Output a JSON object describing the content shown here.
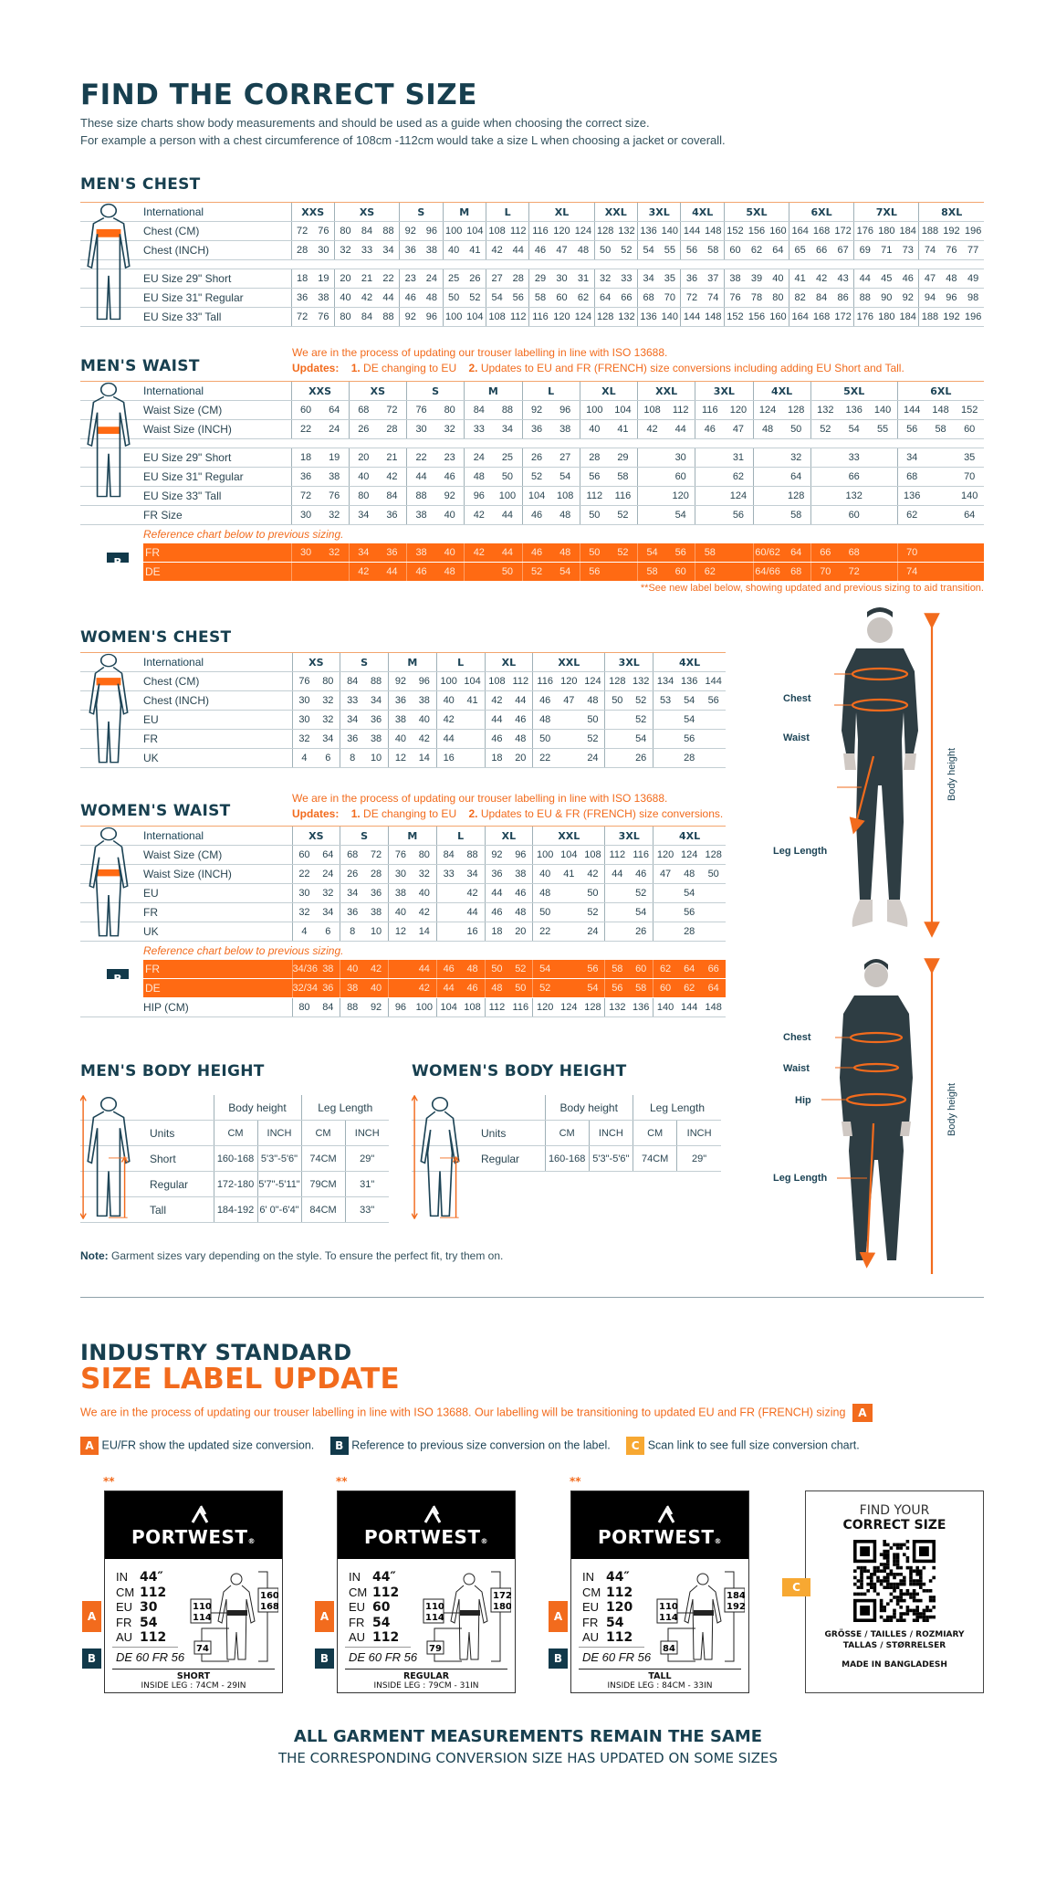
{
  "header": {
    "title": "FIND THE CORRECT SIZE",
    "subtitle_1": "These size charts show body measurements and should be used as a guide when choosing the correct size.",
    "subtitle_2": "For example a person with a chest circumference of 108cm -112cm would take a size L when choosing a jacket or coverall."
  },
  "colors": {
    "navy": "#173f4f",
    "orange": "#ff6a13",
    "badge_b": "#11394a",
    "badge_c": "#f7a832"
  },
  "mens_chest": {
    "title": "MEN'S CHEST",
    "header_label": "International",
    "groups": [
      [
        "XXS",
        2
      ],
      [
        "XS",
        3
      ],
      [
        "S",
        2
      ],
      [
        "M",
        2
      ],
      [
        "L",
        2
      ],
      [
        "XL",
        3
      ],
      [
        "XXL",
        2
      ],
      [
        "3XL",
        2
      ],
      [
        "4XL",
        2
      ],
      [
        "5XL",
        3
      ],
      [
        "6XL",
        3
      ],
      [
        "7XL",
        3
      ],
      [
        "8XL",
        3
      ]
    ],
    "rows": [
      {
        "label": "Chest (CM)",
        "cells": [
          "72",
          "76",
          "80",
          "84",
          "88",
          "92",
          "96",
          "100",
          "104",
          "108",
          "112",
          "116",
          "120",
          "124",
          "128",
          "132",
          "136",
          "140",
          "144",
          "148",
          "152",
          "156",
          "160",
          "164",
          "168",
          "172",
          "176",
          "180",
          "184",
          "188",
          "192",
          "196"
        ]
      },
      {
        "label": "Chest (INCH)",
        "cells": [
          "28",
          "30",
          "32",
          "33",
          "34",
          "36",
          "38",
          "40",
          "41",
          "42",
          "44",
          "46",
          "47",
          "48",
          "50",
          "52",
          "54",
          "55",
          "56",
          "58",
          "60",
          "62",
          "64",
          "65",
          "66",
          "67",
          "69",
          "71",
          "73",
          "74",
          "76",
          "77"
        ]
      },
      {
        "type": "gap"
      },
      {
        "label": "EU Size 29\" Short",
        "cells": [
          "18",
          "19",
          "20",
          "21",
          "22",
          "23",
          "24",
          "25",
          "26",
          "27",
          "28",
          "29",
          "30",
          "31",
          "32",
          "33",
          "34",
          "35",
          "36",
          "37",
          "38",
          "39",
          "40",
          "41",
          "42",
          "43",
          "44",
          "45",
          "46",
          "47",
          "48",
          "49"
        ]
      },
      {
        "label": "EU Size 31\" Regular",
        "cells": [
          "36",
          "38",
          "40",
          "42",
          "44",
          "46",
          "48",
          "50",
          "52",
          "54",
          "56",
          "58",
          "60",
          "62",
          "64",
          "66",
          "68",
          "70",
          "72",
          "74",
          "76",
          "78",
          "80",
          "82",
          "84",
          "86",
          "88",
          "90",
          "92",
          "94",
          "96",
          "98"
        ]
      },
      {
        "label": "EU Size 33\" Tall",
        "cells": [
          "72",
          "76",
          "80",
          "84",
          "88",
          "92",
          "96",
          "100",
          "104",
          "108",
          "112",
          "116",
          "120",
          "124",
          "128",
          "132",
          "136",
          "140",
          "144",
          "148",
          "152",
          "156",
          "160",
          "164",
          "168",
          "172",
          "176",
          "180",
          "184",
          "188",
          "192",
          "196"
        ]
      }
    ]
  },
  "mens_waist": {
    "title": "MEN'S WAIST",
    "notice": "We are in the process of updating our trouser labelling in line with ISO 13688.",
    "updates_label": "Updates:",
    "update_1_num": "1.",
    "update_1": "DE changing to EU",
    "update_2_num": "2.",
    "update_2": "Updates to EU and FR (FRENCH) size conversions including adding EU Short and Tall.",
    "footnote": "**See new label below, showing updated and previous sizing to aid transition.",
    "header_label": "International",
    "groups": [
      [
        "XXS",
        2
      ],
      [
        "XS",
        2
      ],
      [
        "S",
        2
      ],
      [
        "M",
        2
      ],
      [
        "L",
        2
      ],
      [
        "XL",
        2
      ],
      [
        "XXL",
        2
      ],
      [
        "3XL",
        2
      ],
      [
        "4XL",
        2
      ],
      [
        "5XL",
        3
      ],
      [
        "6XL",
        3
      ]
    ],
    "rows": [
      {
        "label": "Waist Size (CM)",
        "cells": [
          "60",
          "64",
          "68",
          "72",
          "76",
          "80",
          "84",
          "88",
          "92",
          "96",
          "100",
          "104",
          "108",
          "112",
          "116",
          "120",
          "124",
          "128",
          "132",
          "136",
          "140",
          "144",
          "148",
          "152"
        ]
      },
      {
        "label": "Waist Size (INCH)",
        "cells": [
          "22",
          "24",
          "26",
          "28",
          "30",
          "32",
          "33",
          "34",
          "36",
          "38",
          "40",
          "41",
          "42",
          "44",
          "46",
          "47",
          "48",
          "50",
          "52",
          "54",
          "55",
          "56",
          "58",
          "60"
        ]
      },
      {
        "type": "gap"
      },
      {
        "label": "EU Size 29\" Short",
        "cells": [
          "18",
          "19",
          "20",
          "21",
          "22",
          "23",
          "24",
          "25",
          "26",
          "27",
          "28",
          "29",
          "",
          "30",
          "",
          "31",
          "",
          "32",
          "",
          "33",
          "",
          "34",
          "",
          "35"
        ]
      },
      {
        "label": "EU Size 31\" Regular",
        "cells": [
          "36",
          "38",
          "40",
          "42",
          "44",
          "46",
          "48",
          "50",
          "52",
          "54",
          "56",
          "58",
          "",
          "60",
          "",
          "62",
          "",
          "64",
          "",
          "66",
          "",
          "68",
          "",
          "70"
        ]
      },
      {
        "label": "EU Size 33\" Tall",
        "cells": [
          "72",
          "76",
          "80",
          "84",
          "88",
          "92",
          "96",
          "100",
          "104",
          "108",
          "112",
          "116",
          "",
          "120",
          "",
          "124",
          "",
          "128",
          "",
          "132",
          "",
          "136",
          "",
          "140"
        ]
      },
      {
        "label": "FR Size",
        "cells": [
          "30",
          "32",
          "34",
          "36",
          "38",
          "40",
          "42",
          "44",
          "46",
          "48",
          "50",
          "52",
          "",
          "54",
          "",
          "56",
          "",
          "58",
          "",
          "60",
          "",
          "62",
          "",
          "64"
        ]
      },
      {
        "type": "ref",
        "label": "Reference chart below to previous sizing."
      },
      {
        "type": "orange",
        "badge": "B",
        "label": "FR",
        "cells": [
          "30",
          "32",
          "34",
          "36",
          "38",
          "40",
          "42",
          "44",
          "46",
          "48",
          "50",
          "52",
          "54",
          "56",
          "58",
          "",
          "60/62",
          "64",
          "66",
          "68",
          "",
          "70",
          "",
          ""
        ]
      },
      {
        "type": "orange",
        "label": "DE",
        "cells": [
          "",
          "",
          "42",
          "44",
          "46",
          "48",
          "",
          "50",
          "52",
          "54",
          "56",
          "",
          "58",
          "60",
          "62",
          "",
          "64/66",
          "68",
          "70",
          "72",
          "",
          "74",
          "",
          ""
        ]
      }
    ]
  },
  "womens_chest": {
    "title": "WOMEN'S CHEST",
    "header_label": "International",
    "groups": [
      [
        "XS",
        2
      ],
      [
        "S",
        2
      ],
      [
        "M",
        2
      ],
      [
        "L",
        2
      ],
      [
        "XL",
        2
      ],
      [
        "XXL",
        3
      ],
      [
        "3XL",
        2
      ],
      [
        "4XL",
        3
      ]
    ],
    "rows": [
      {
        "label": "Chest (CM)",
        "cells": [
          "76",
          "80",
          "84",
          "88",
          "92",
          "96",
          "100",
          "104",
          "108",
          "112",
          "116",
          "120",
          "124",
          "128",
          "132",
          "134",
          "136",
          "144"
        ]
      },
      {
        "label": "Chest (INCH)",
        "cells": [
          "30",
          "32",
          "33",
          "34",
          "36",
          "38",
          "40",
          "41",
          "42",
          "44",
          "46",
          "47",
          "48",
          "50",
          "52",
          "53",
          "54",
          "56"
        ]
      },
      {
        "label": "EU",
        "cells": [
          "30",
          "32",
          "34",
          "36",
          "38",
          "40",
          "42",
          "",
          "44",
          "46",
          "48",
          "",
          "50",
          "",
          "52",
          "",
          "54",
          ""
        ]
      },
      {
        "label": "FR",
        "cells": [
          "32",
          "34",
          "36",
          "38",
          "40",
          "42",
          "44",
          "",
          "46",
          "48",
          "50",
          "",
          "52",
          "",
          "54",
          "",
          "56",
          ""
        ]
      },
      {
        "label": "UK",
        "cells": [
          "4",
          "6",
          "8",
          "10",
          "12",
          "14",
          "16",
          "",
          "18",
          "20",
          "22",
          "",
          "24",
          "",
          "26",
          "",
          "28",
          ""
        ]
      }
    ]
  },
  "womens_waist": {
    "title": "WOMEN'S WAIST",
    "notice": "We are in the process of updating our trouser labelling in line with ISO 13688.",
    "updates_label": "Updates:",
    "update_1_num": "1.",
    "update_1": "DE changing to EU",
    "update_2_num": "2.",
    "update_2": "Updates to EU & FR (FRENCH) size conversions.",
    "header_label": "International",
    "groups": [
      [
        "XS",
        2
      ],
      [
        "S",
        2
      ],
      [
        "M",
        2
      ],
      [
        "L",
        2
      ],
      [
        "XL",
        2
      ],
      [
        "XXL",
        3
      ],
      [
        "3XL",
        2
      ],
      [
        "4XL",
        3
      ]
    ],
    "rows": [
      {
        "label": "Waist Size (CM)",
        "cells": [
          "60",
          "64",
          "68",
          "72",
          "76",
          "80",
          "84",
          "88",
          "92",
          "96",
          "100",
          "104",
          "108",
          "112",
          "116",
          "120",
          "124",
          "128"
        ]
      },
      {
        "label": "Waist Size (INCH)",
        "cells": [
          "22",
          "24",
          "26",
          "28",
          "30",
          "32",
          "33",
          "34",
          "36",
          "38",
          "40",
          "41",
          "42",
          "44",
          "46",
          "47",
          "48",
          "50"
        ]
      },
      {
        "label": "EU",
        "cells": [
          "30",
          "32",
          "34",
          "36",
          "38",
          "40",
          "",
          "42",
          "44",
          "46",
          "48",
          "",
          "50",
          "",
          "52",
          "",
          "54",
          ""
        ]
      },
      {
        "label": "FR",
        "cells": [
          "32",
          "34",
          "36",
          "38",
          "40",
          "42",
          "",
          "44",
          "46",
          "48",
          "50",
          "",
          "52",
          "",
          "54",
          "",
          "56",
          ""
        ]
      },
      {
        "label": "UK",
        "cells": [
          "4",
          "6",
          "8",
          "10",
          "12",
          "14",
          "",
          "16",
          "18",
          "20",
          "22",
          "",
          "24",
          "",
          "26",
          "",
          "28",
          ""
        ]
      },
      {
        "type": "ref",
        "label": "Reference chart below to previous sizing."
      },
      {
        "type": "orange",
        "badge": "B",
        "label": "FR",
        "cells": [
          "34/36",
          "38",
          "40",
          "42",
          "",
          "44",
          "46",
          "48",
          "50",
          "52",
          "54",
          "",
          "56",
          "58",
          "60",
          "62",
          "64",
          "66"
        ]
      },
      {
        "type": "orange",
        "label": "DE",
        "cells": [
          "32/34",
          "36",
          "38",
          "40",
          "",
          "42",
          "44",
          "46",
          "48",
          "50",
          "52",
          "",
          "54",
          "56",
          "58",
          "60",
          "62",
          "64"
        ]
      },
      {
        "label": "HIP (CM)",
        "cells": [
          "80",
          "84",
          "88",
          "92",
          "96",
          "100",
          "104",
          "108",
          "112",
          "116",
          "120",
          "124",
          "128",
          "132",
          "136",
          "140",
          "144",
          "148"
        ]
      }
    ]
  },
  "mens_body_height": {
    "title": "MEN'S BODY HEIGHT",
    "col_groups": [
      "Body height",
      "Leg Length"
    ],
    "rows": [
      [
        "Units",
        "CM",
        "INCH",
        "CM",
        "INCH"
      ],
      [
        "Short",
        "160-168",
        "5'3\"-5'6\"",
        "74CM",
        "29\""
      ],
      [
        "Regular",
        "172-180",
        "5'7\"-5'11\"",
        "79CM",
        "31\""
      ],
      [
        "Tall",
        "184-192",
        "6' 0\"-6'4\"",
        "84CM",
        "33\""
      ]
    ]
  },
  "womens_body_height": {
    "title": "WOMEN'S BODY HEIGHT",
    "col_groups": [
      "Body height",
      "Leg Length"
    ],
    "rows": [
      [
        "Units",
        "CM",
        "INCH",
        "CM",
        "INCH"
      ],
      [
        "Regular",
        "160-168",
        "5'3\"-5'6\"",
        "74CM",
        "29\""
      ]
    ]
  },
  "photos": {
    "man_labels": {
      "chest": "Chest",
      "waist": "Waist",
      "leg": "Leg Length",
      "height": "Body height"
    },
    "woman_labels": {
      "chest": "Chest",
      "waist": "Waist",
      "hip": "Hip",
      "leg": "Leg Length",
      "height": "Body height"
    }
  },
  "note": {
    "label": "Note:",
    "text": " Garment sizes vary depending on the style. To ensure the perfect fit, try them on."
  },
  "label_update": {
    "kicker": "INDUSTRY STANDARD",
    "title": "SIZE LABEL UPDATE",
    "intro": "We are in the process of updating our trouser labelling in line with ISO 13688. Our labelling will be transitioning to updated EU and FR (FRENCH) sizing",
    "intro_badge": "A",
    "legend": [
      {
        "badge": "A",
        "text": "EU/FR show the updated size conversion."
      },
      {
        "badge": "B",
        "text": "Reference to previous size conversion on the label."
      },
      {
        "badge": "C",
        "text": "Scan link to see full size conversion chart."
      }
    ],
    "labels": [
      {
        "stars": "**",
        "brand": "PORTWEST",
        "reg": "®",
        "values": [
          [
            "IN",
            "44″"
          ],
          [
            "CM",
            "112"
          ],
          [
            "EU",
            "30"
          ],
          [
            "FR",
            "54"
          ],
          [
            "AU",
            "112"
          ]
        ],
        "previous": "DE 60 FR 56",
        "waist_box": [
          "110",
          "114"
        ],
        "height_box": [
          "160",
          "168"
        ],
        "leg_box": "74",
        "fit": "SHORT",
        "inside_leg": "INSIDE LEG : 74CM - 29IN",
        "badge_a": "A",
        "badge_b": "B"
      },
      {
        "stars": "**",
        "brand": "PORTWEST",
        "reg": "®",
        "values": [
          [
            "IN",
            "44″"
          ],
          [
            "CM",
            "112"
          ],
          [
            "EU",
            "60"
          ],
          [
            "FR",
            "54"
          ],
          [
            "AU",
            "112"
          ]
        ],
        "previous": "DE 60 FR 56",
        "waist_box": [
          "110",
          "114"
        ],
        "height_box": [
          "172",
          "180"
        ],
        "leg_box": "79",
        "fit": "REGULAR",
        "inside_leg": "INSIDE LEG : 79CM - 31IN",
        "badge_a": "A",
        "badge_b": "B"
      },
      {
        "stars": "**",
        "brand": "PORTWEST",
        "reg": "®",
        "values": [
          [
            "IN",
            "44″"
          ],
          [
            "CM",
            "112"
          ],
          [
            "EU",
            "120"
          ],
          [
            "FR",
            "54"
          ],
          [
            "AU",
            "112"
          ]
        ],
        "previous": "DE 60 FR 56",
        "waist_box": [
          "110",
          "114"
        ],
        "height_box": [
          "184",
          "192"
        ],
        "leg_box": "84",
        "fit": "TALL",
        "inside_leg": "INSIDE LEG : 84CM - 33IN",
        "badge_a": "A",
        "badge_b": "B"
      }
    ],
    "qr_card": {
      "line1": "FIND YOUR",
      "line2": "CORRECT SIZE",
      "langs_1": "GRÖSSE / TAILLES / ROZMIARY",
      "langs_2": "TALLAS  / STØRRELSER",
      "origin": "MADE IN BANGLADESH",
      "badge": "C"
    }
  },
  "footer": {
    "line1": "ALL GARMENT MEASUREMENTS REMAIN THE SAME",
    "line2": "THE CORRESPONDING CONVERSION SIZE HAS UPDATED ON SOME SIZES"
  }
}
